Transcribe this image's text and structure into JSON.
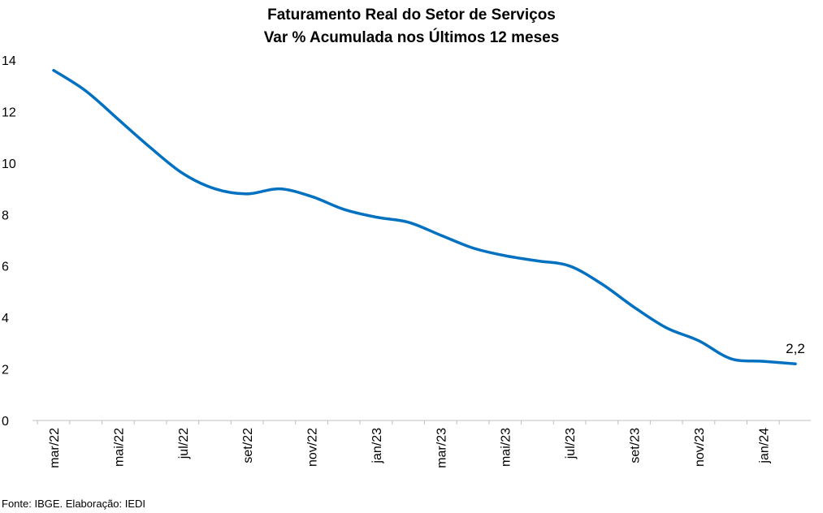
{
  "chart_data": {
    "type": "line",
    "title": "Faturamento Real do Setor de Serviços",
    "subtitle": "Var % Acumulada nos Últimos 12 meses",
    "xlabel": "",
    "ylabel": "",
    "ylim": [
      0,
      14
    ],
    "yticks": [
      "0",
      "2",
      "4",
      "6",
      "8",
      "10",
      "12",
      "14"
    ],
    "x_tick_labels": [
      "mar/22",
      "mai/22",
      "jul/22",
      "set/22",
      "nov/22",
      "jan/23",
      "mar/23",
      "mai/23",
      "jul/23",
      "set/23",
      "nov/23",
      "jan/24"
    ],
    "x": [
      "mar/22",
      "abr/22",
      "mai/22",
      "jun/22",
      "jul/22",
      "ago/22",
      "set/22",
      "out/22",
      "nov/22",
      "dez/22",
      "jan/23",
      "fev/23",
      "mar/23",
      "abr/23",
      "mai/23",
      "jun/23",
      "jul/23",
      "ago/23",
      "set/23",
      "out/23",
      "nov/23",
      "dez/23",
      "jan/24",
      "fev/24"
    ],
    "series": [
      {
        "color": "#0070C0",
        "values": [
          13.6,
          12.8,
          11.7,
          10.6,
          9.6,
          9.0,
          8.8,
          9.0,
          8.7,
          8.2,
          7.9,
          7.7,
          7.2,
          6.7,
          6.4,
          6.2,
          6.0,
          5.3,
          4.4,
          3.6,
          3.1,
          2.4,
          2.3,
          2.2
        ]
      }
    ],
    "annotations": [
      {
        "text": "2,2",
        "x": "fev/24",
        "y": 2.2
      }
    ],
    "grid": false,
    "legend": "none",
    "source": "Fonte: IBGE. Elaboração: IEDI"
  }
}
